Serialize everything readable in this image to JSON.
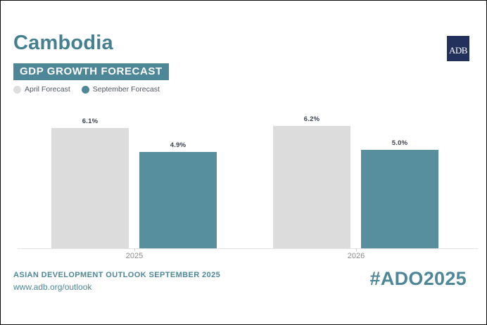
{
  "header": {
    "country": "Cambodia",
    "chart_title": "GDP GROWTH FORECAST",
    "logo_text": "ADB"
  },
  "legend": {
    "items": [
      {
        "label": "April Forecast",
        "color": "#dedede"
      },
      {
        "label": "September Forecast",
        "color": "#4d8798"
      }
    ]
  },
  "chart_data": {
    "type": "bar",
    "title": "Cambodia GDP Growth Forecast",
    "categories": [
      "2025",
      "2026"
    ],
    "series": [
      {
        "name": "April Forecast",
        "values": [
          6.1,
          6.2
        ],
        "color": "#dcdcdc"
      },
      {
        "name": "September Forecast",
        "values": [
          4.9,
          5.0
        ],
        "color": "#578f9e"
      }
    ],
    "value_labels": [
      [
        "6.1%",
        "4.9%"
      ],
      [
        "6.2%",
        "5.0%"
      ]
    ],
    "unit": "%",
    "ylim": [
      0,
      6.8
    ],
    "grid": false,
    "legend_position": "top-left"
  },
  "footer": {
    "publication": "ASIAN DEVELOPMENT OUTLOOK SEPTEMBER 2025",
    "url": "www.adb.org/outlook",
    "hashtag": "#ADO2025"
  },
  "colors": {
    "accent_teal": "#4d8798",
    "title_teal": "#44808f",
    "bar_teal": "#578f9e",
    "bar_gray": "#dcdcdc",
    "logo_navy": "#22305c"
  }
}
